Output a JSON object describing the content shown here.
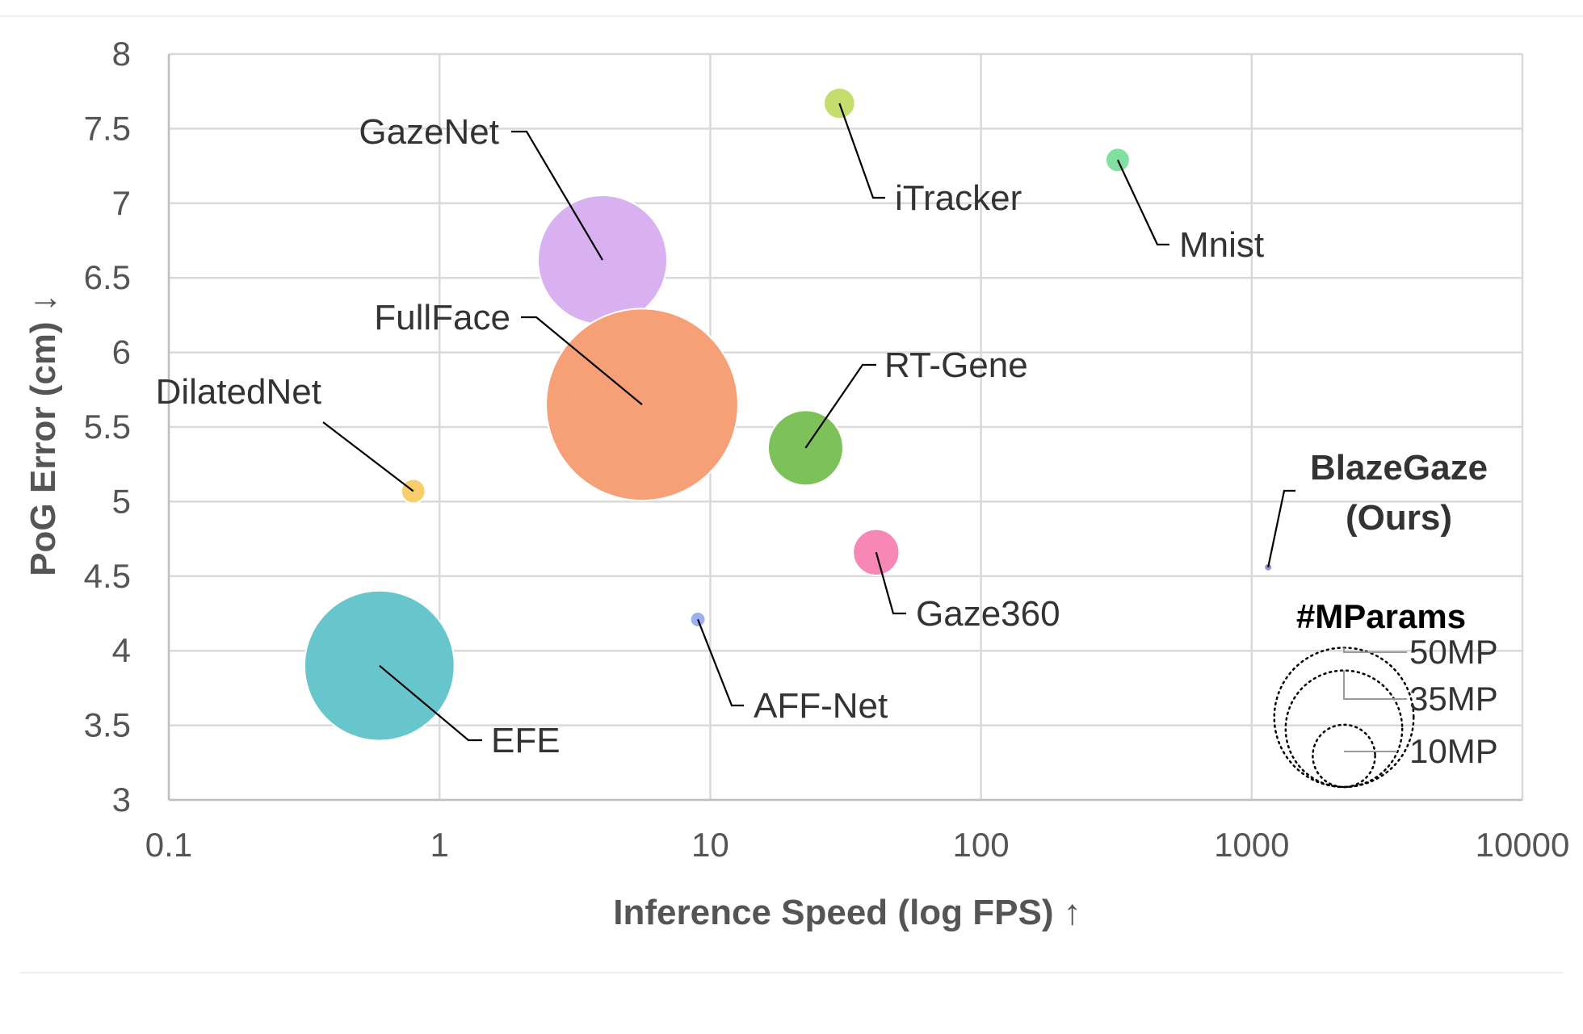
{
  "chart_data": {
    "type": "scatter",
    "subtype": "bubble",
    "xlabel": "Inference Speed (log FPS) ↑",
    "ylabel": "PoG Error (cm) ↓",
    "x_scale": "log",
    "xlim": [
      0.1,
      10000
    ],
    "ylim": [
      3,
      8
    ],
    "x_ticks": [
      "0.1",
      "1",
      "10",
      "100",
      "1000",
      "10000"
    ],
    "y_ticks": [
      "3",
      "3.5",
      "4",
      "4.5",
      "5",
      "5.5",
      "6",
      "6.5",
      "7",
      "7.5",
      "8"
    ],
    "grid": true,
    "points": [
      {
        "label": "GazeNet",
        "x": 4.0,
        "y": 6.62,
        "size_mparams": 43,
        "color": "#D9B0F0",
        "label_pos": "upper-left"
      },
      {
        "label": "FullFace",
        "x": 5.6,
        "y": 5.65,
        "size_mparams": 95,
        "color": "#F6A078",
        "label_pos": "upper-left"
      },
      {
        "label": "iTracker",
        "x": 30,
        "y": 7.67,
        "size_mparams": 2.5,
        "color": "#C4DE6E",
        "label_pos": "lower-right"
      },
      {
        "label": "Mnist",
        "x": 320,
        "y": 7.29,
        "size_mparams": 1.5,
        "color": "#7FE0A0",
        "label_pos": "lower-right"
      },
      {
        "label": "RT-Gene",
        "x": 22.5,
        "y": 5.36,
        "size_mparams": 14.5,
        "color": "#7CC159",
        "label_pos": "upper-right"
      },
      {
        "label": "DilatedNet",
        "x": 0.8,
        "y": 5.07,
        "size_mparams": 1.5,
        "color": "#F8CD6C",
        "label_pos": "upper-left"
      },
      {
        "label": "Gaze360",
        "x": 41,
        "y": 4.66,
        "size_mparams": 5.5,
        "color": "#F787B5",
        "label_pos": "lower-right"
      },
      {
        "label": "AFF-Net",
        "x": 9,
        "y": 4.21,
        "size_mparams": 0.6,
        "color": "#9AB1EE",
        "label_pos": "lower-right"
      },
      {
        "label": "EFE",
        "x": 0.6,
        "y": 3.9,
        "size_mparams": 58,
        "color": "#67C6CB",
        "label_pos": "lower-right"
      },
      {
        "label": "BlazeGaze\n(Ours)",
        "x": 1150,
        "y": 4.56,
        "size_mparams": 0.1,
        "color": "#9E8DDA",
        "label_pos": "upper-right",
        "bold": true
      }
    ],
    "legend": {
      "title": "#MParams",
      "position": "bottom-right",
      "entries": [
        {
          "label": "50MP",
          "mparams": 50
        },
        {
          "label": "35MP",
          "mparams": 35
        },
        {
          "label": "10MP",
          "mparams": 10
        }
      ]
    }
  }
}
